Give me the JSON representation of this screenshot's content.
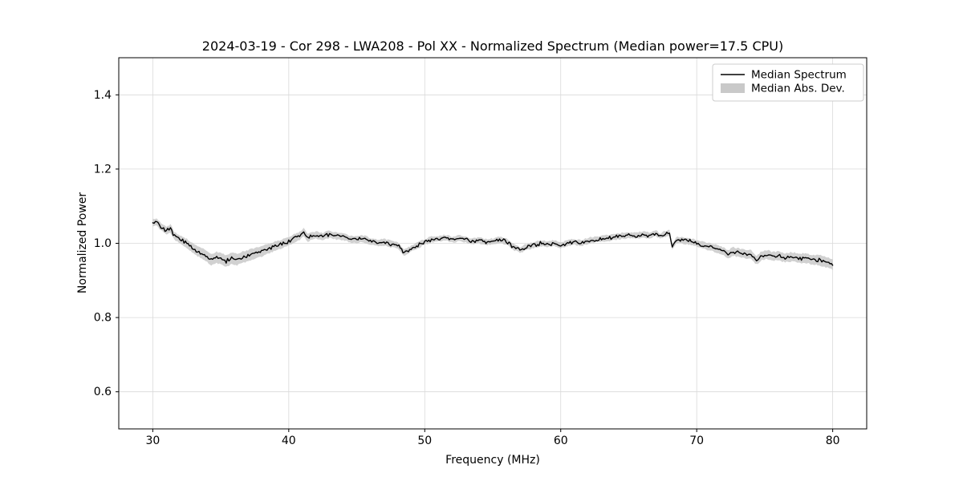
{
  "figure": {
    "title": "2024-03-19 - Cor 298 - LWA208 - Pol XX - Normalized Spectrum (Median power=17.5 CPU)",
    "xlabel": "Frequency (MHz)",
    "ylabel": "Normalized Power"
  },
  "legend": {
    "position": "upper right",
    "entries": [
      {
        "label": "Median Spectrum",
        "type": "line",
        "color": "#000000"
      },
      {
        "label": "Median Abs. Dev.",
        "type": "band",
        "color": "#c9c9c9"
      }
    ]
  },
  "chart_data": {
    "type": "line",
    "title": "2024-03-19 - Cor 298 - LWA208 - Pol XX - Normalized Spectrum (Median power=17.5 CPU)",
    "xlabel": "Frequency (MHz)",
    "ylabel": "Normalized Power",
    "xlim": [
      27.5,
      82.5
    ],
    "ylim": [
      0.5,
      1.5
    ],
    "xticks": [
      30,
      40,
      50,
      60,
      70,
      80
    ],
    "yticks": [
      0.6,
      0.8,
      1.0,
      1.2,
      1.4
    ],
    "grid": true,
    "line_color": "#000000",
    "band_color": "#c9c9c9",
    "noise_amplitude": 0.004,
    "series": [
      {
        "name": "Median Spectrum",
        "x": [
          30.0,
          30.3,
          30.6,
          31.0,
          31.3,
          31.6,
          32.0,
          32.5,
          33.0,
          33.5,
          34.0,
          34.3,
          34.7,
          35.0,
          35.4,
          35.8,
          36.2,
          36.6,
          37.0,
          37.5,
          38.0,
          38.4,
          38.8,
          39.2,
          39.6,
          40.0,
          40.4,
          40.8,
          41.1,
          41.4,
          41.7,
          42.0,
          42.5,
          43.0,
          43.5,
          44.0,
          44.5,
          45.0,
          45.5,
          46.0,
          46.5,
          47.0,
          47.5,
          48.0,
          48.5,
          48.8,
          49.2,
          49.6,
          50.0,
          50.5,
          51.0,
          51.5,
          52.0,
          52.5,
          53.0,
          53.5,
          54.0,
          54.5,
          55.0,
          55.5,
          56.0,
          56.5,
          57.0,
          57.5,
          58.0,
          58.5,
          59.0,
          59.5,
          60.0,
          60.5,
          61.0,
          61.5,
          62.0,
          62.5,
          63.0,
          63.5,
          64.0,
          64.5,
          65.0,
          65.5,
          66.0,
          66.5,
          67.0,
          67.3,
          67.6,
          68.0,
          68.2,
          68.5,
          69.0,
          69.5,
          70.0,
          70.5,
          71.0,
          71.5,
          72.0,
          72.3,
          72.7,
          73.0,
          73.5,
          74.0,
          74.4,
          74.8,
          75.2,
          75.6,
          76.0,
          76.5,
          77.0,
          77.5,
          78.0,
          78.5,
          79.0,
          79.5,
          80.0
        ],
        "y": [
          1.055,
          1.058,
          1.045,
          1.035,
          1.04,
          1.02,
          1.01,
          1.0,
          0.985,
          0.975,
          0.965,
          0.955,
          0.962,
          0.958,
          0.952,
          0.96,
          0.957,
          0.962,
          0.967,
          0.972,
          0.978,
          0.984,
          0.99,
          0.995,
          1.0,
          1.005,
          1.014,
          1.02,
          1.03,
          1.015,
          1.02,
          1.022,
          1.018,
          1.024,
          1.02,
          1.018,
          1.012,
          1.01,
          1.012,
          1.005,
          1.002,
          1.003,
          0.998,
          0.995,
          0.975,
          0.981,
          0.99,
          0.996,
          1.004,
          1.01,
          1.012,
          1.015,
          1.01,
          1.014,
          1.01,
          1.005,
          1.008,
          1.003,
          1.005,
          1.01,
          1.005,
          0.99,
          0.982,
          0.99,
          0.995,
          1.0,
          0.998,
          1.0,
          0.995,
          1.0,
          1.004,
          1.0,
          1.007,
          1.01,
          1.012,
          1.014,
          1.017,
          1.02,
          1.022,
          1.02,
          1.024,
          1.021,
          1.027,
          1.019,
          1.024,
          1.027,
          0.99,
          1.01,
          1.008,
          1.005,
          1.0,
          0.995,
          0.99,
          0.985,
          0.978,
          0.97,
          0.978,
          0.975,
          0.972,
          0.969,
          0.955,
          0.967,
          0.97,
          0.964,
          0.967,
          0.961,
          0.964,
          0.959,
          0.961,
          0.955,
          0.955,
          0.949,
          0.943
        ]
      },
      {
        "name": "Median Abs. Dev.",
        "band_halfwidth_anchors": [
          [
            30,
            0.01
          ],
          [
            32,
            0.011
          ],
          [
            34,
            0.015
          ],
          [
            36,
            0.016
          ],
          [
            38,
            0.014
          ],
          [
            40,
            0.011
          ],
          [
            42,
            0.01
          ],
          [
            45,
            0.009
          ],
          [
            48,
            0.009
          ],
          [
            50,
            0.008
          ],
          [
            55,
            0.008
          ],
          [
            60,
            0.008
          ],
          [
            65,
            0.008
          ],
          [
            68,
            0.008
          ],
          [
            70,
            0.009
          ],
          [
            72,
            0.011
          ],
          [
            74,
            0.012
          ],
          [
            76,
            0.012
          ],
          [
            78,
            0.013
          ],
          [
            80,
            0.014
          ]
        ]
      }
    ]
  }
}
